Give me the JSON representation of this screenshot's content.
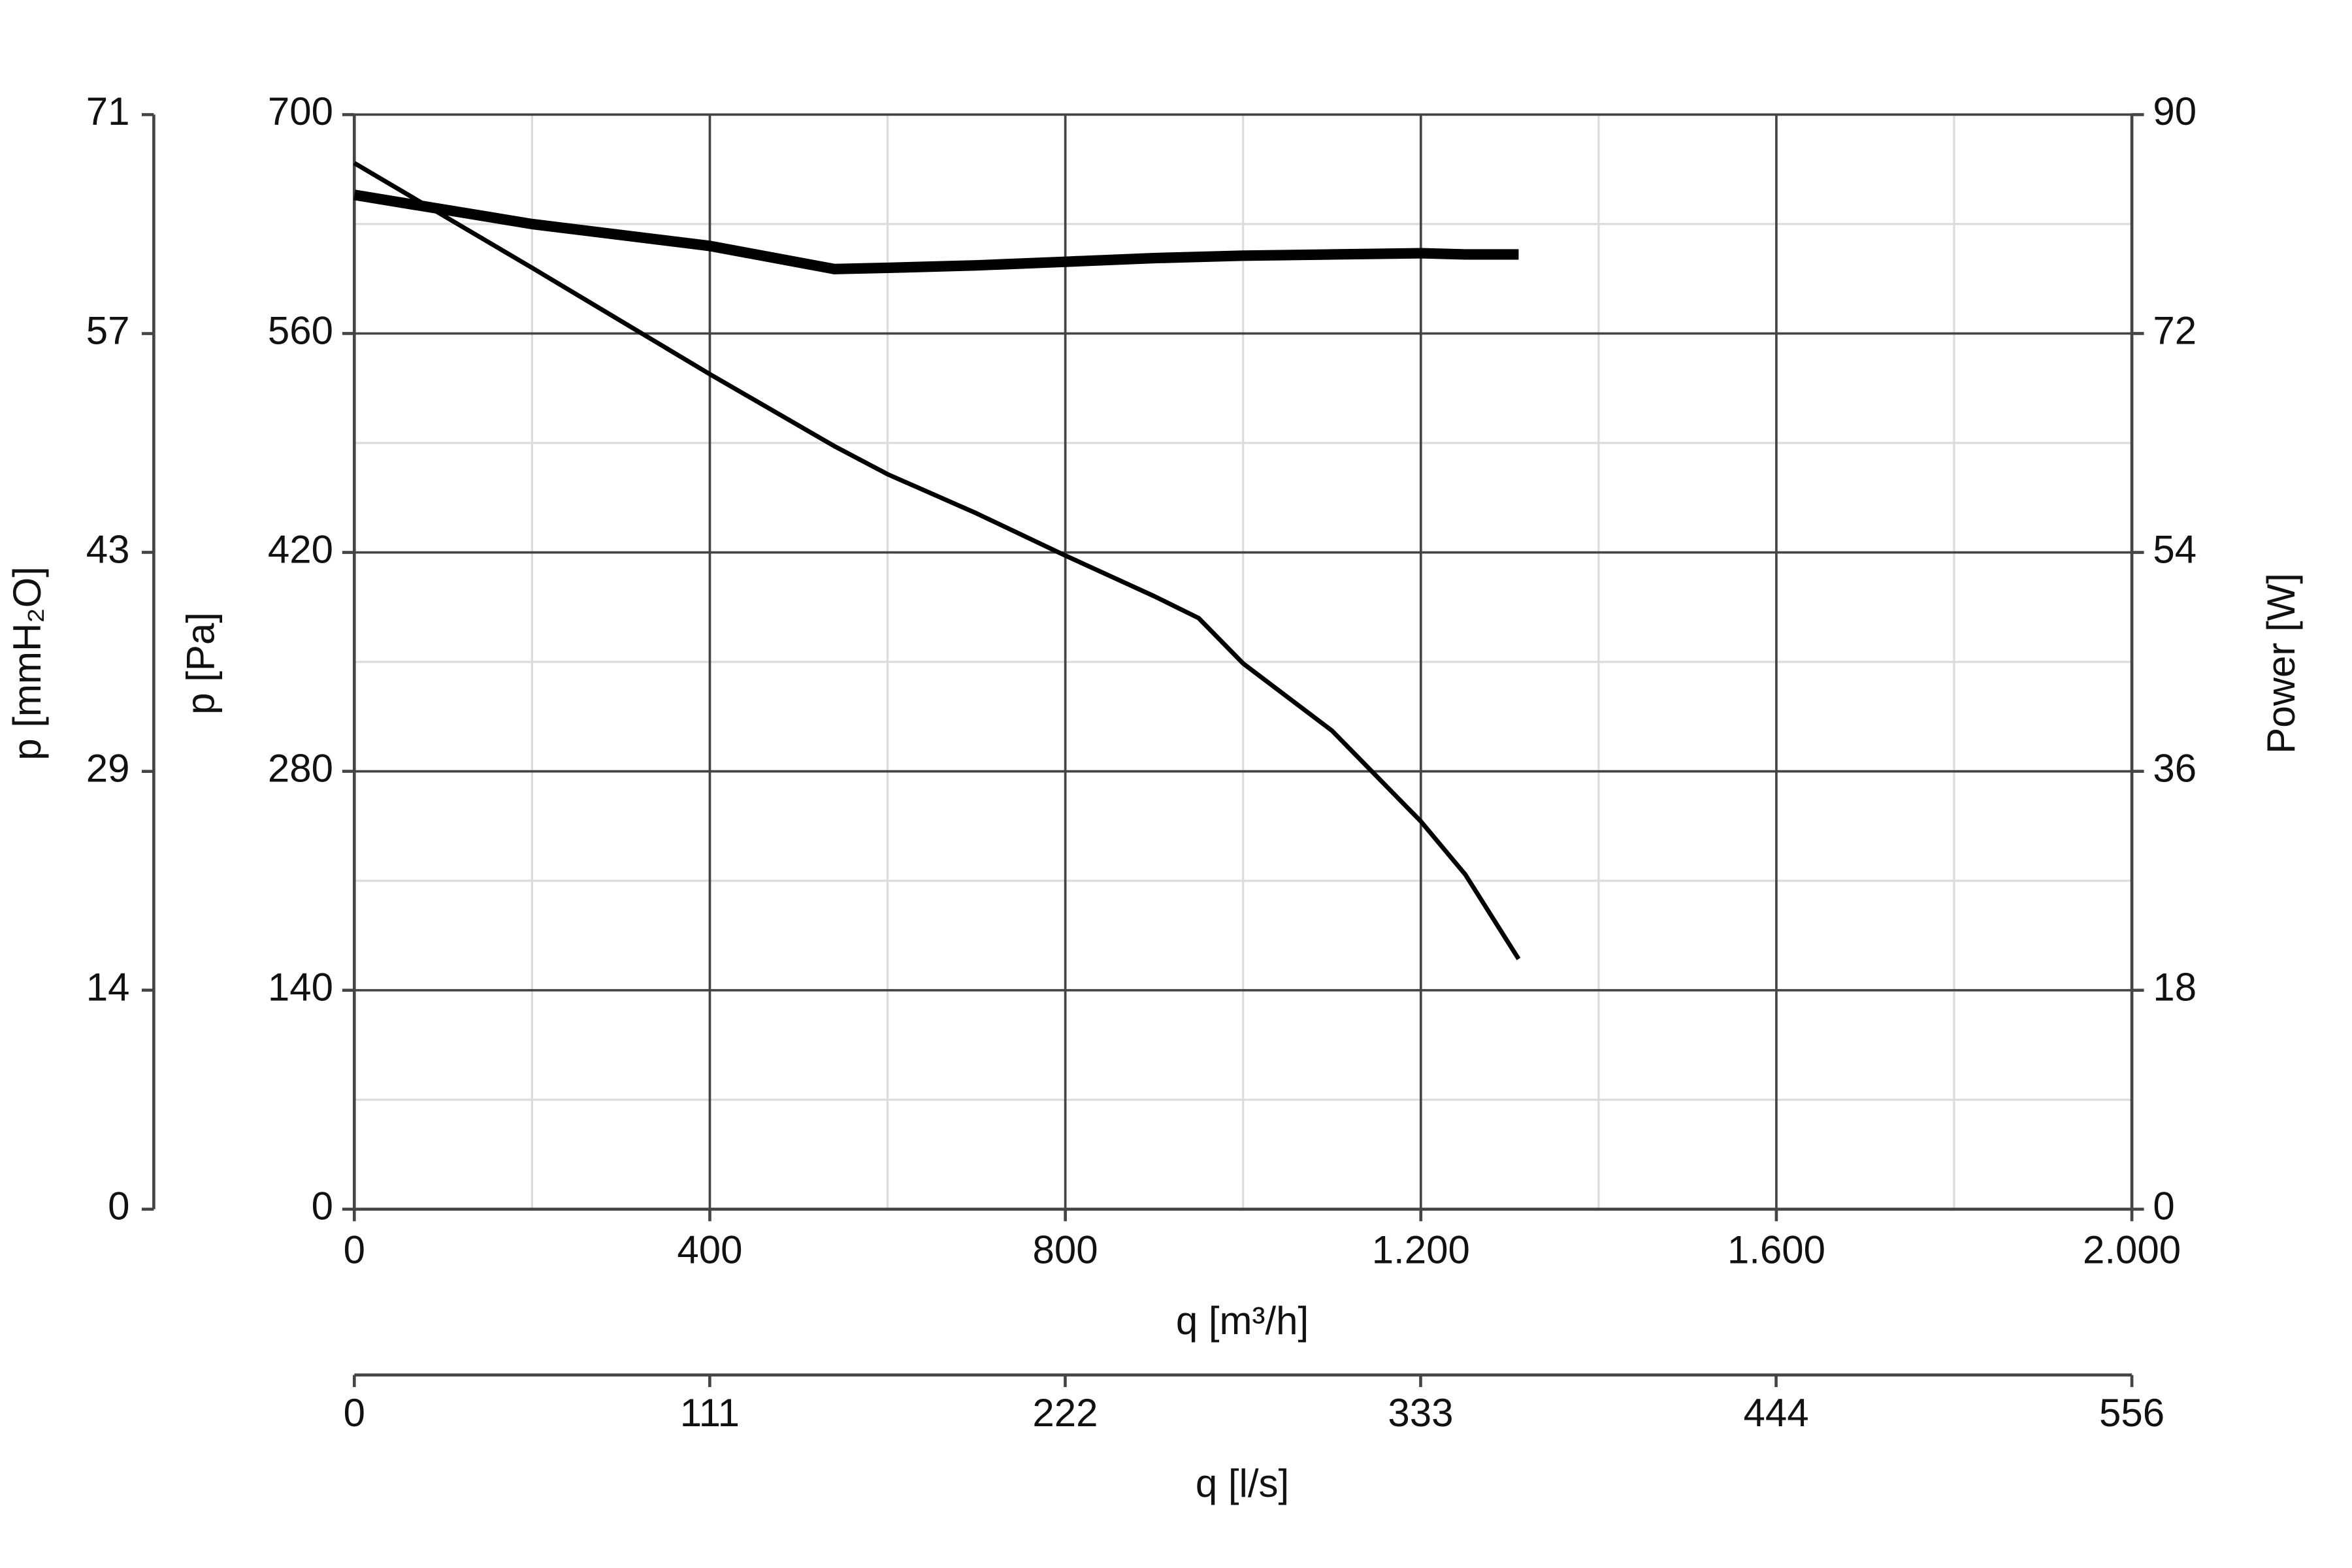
{
  "chart_data": {
    "type": "line",
    "x_label": "q [m³/h]",
    "xlim": [
      0,
      2000
    ],
    "xticks": [
      0,
      400,
      800,
      {
        "value": 1200,
        "label": "1.200"
      },
      {
        "value": 1600,
        "label": "1.600"
      },
      {
        "value": 2000,
        "label": "2.000"
      }
    ],
    "x2_label": "q [l/s]",
    "x2lim": [
      0,
      555.6
    ],
    "x2ticks": [
      0,
      {
        "value": 111.1,
        "label": "111"
      },
      {
        "value": 222.2,
        "label": "222"
      },
      {
        "value": 333.3,
        "label": "333"
      },
      {
        "value": 444.4,
        "label": "444"
      },
      {
        "value": 555.6,
        "label": "556"
      }
    ],
    "y_label": "p [Pa]",
    "ylim": [
      0,
      700
    ],
    "yticks": [
      0,
      140,
      280,
      420,
      560,
      700
    ],
    "y3_label": "p [mmH₂O]",
    "y3lim": [
      0,
      71.38
    ],
    "y3ticks": [
      0,
      {
        "value": 14.28,
        "label": "14"
      },
      {
        "value": 28.55,
        "label": "29"
      },
      {
        "value": 42.83,
        "label": "43"
      },
      {
        "value": 57.1,
        "label": "57"
      },
      {
        "value": 71.38,
        "label": "71"
      }
    ],
    "y2_label": "Power [W]",
    "y2lim": [
      0,
      90
    ],
    "y2ticks": [
      0,
      18,
      36,
      54,
      72,
      90
    ],
    "grid": true,
    "minor_grid": true,
    "x": [
      0,
      200,
      400,
      540,
      600,
      700,
      800,
      900,
      950,
      1000,
      1100,
      1200,
      1250,
      1310
    ],
    "series": [
      {
        "color": "#000000",
        "values": [
          669,
          602,
          534,
          488,
          470,
          445,
          418,
          392,
          378,
          349,
          306,
          248,
          214,
          160
        ]
      },
      {
        "color": "#000000",
        "axis": "y2",
        "values": [
          83.4,
          81.0,
          79.2,
          77.3,
          77.4,
          77.6,
          77.9,
          78.2,
          78.3,
          78.4,
          78.5,
          78.6,
          78.5,
          78.5
        ]
      }
    ]
  }
}
